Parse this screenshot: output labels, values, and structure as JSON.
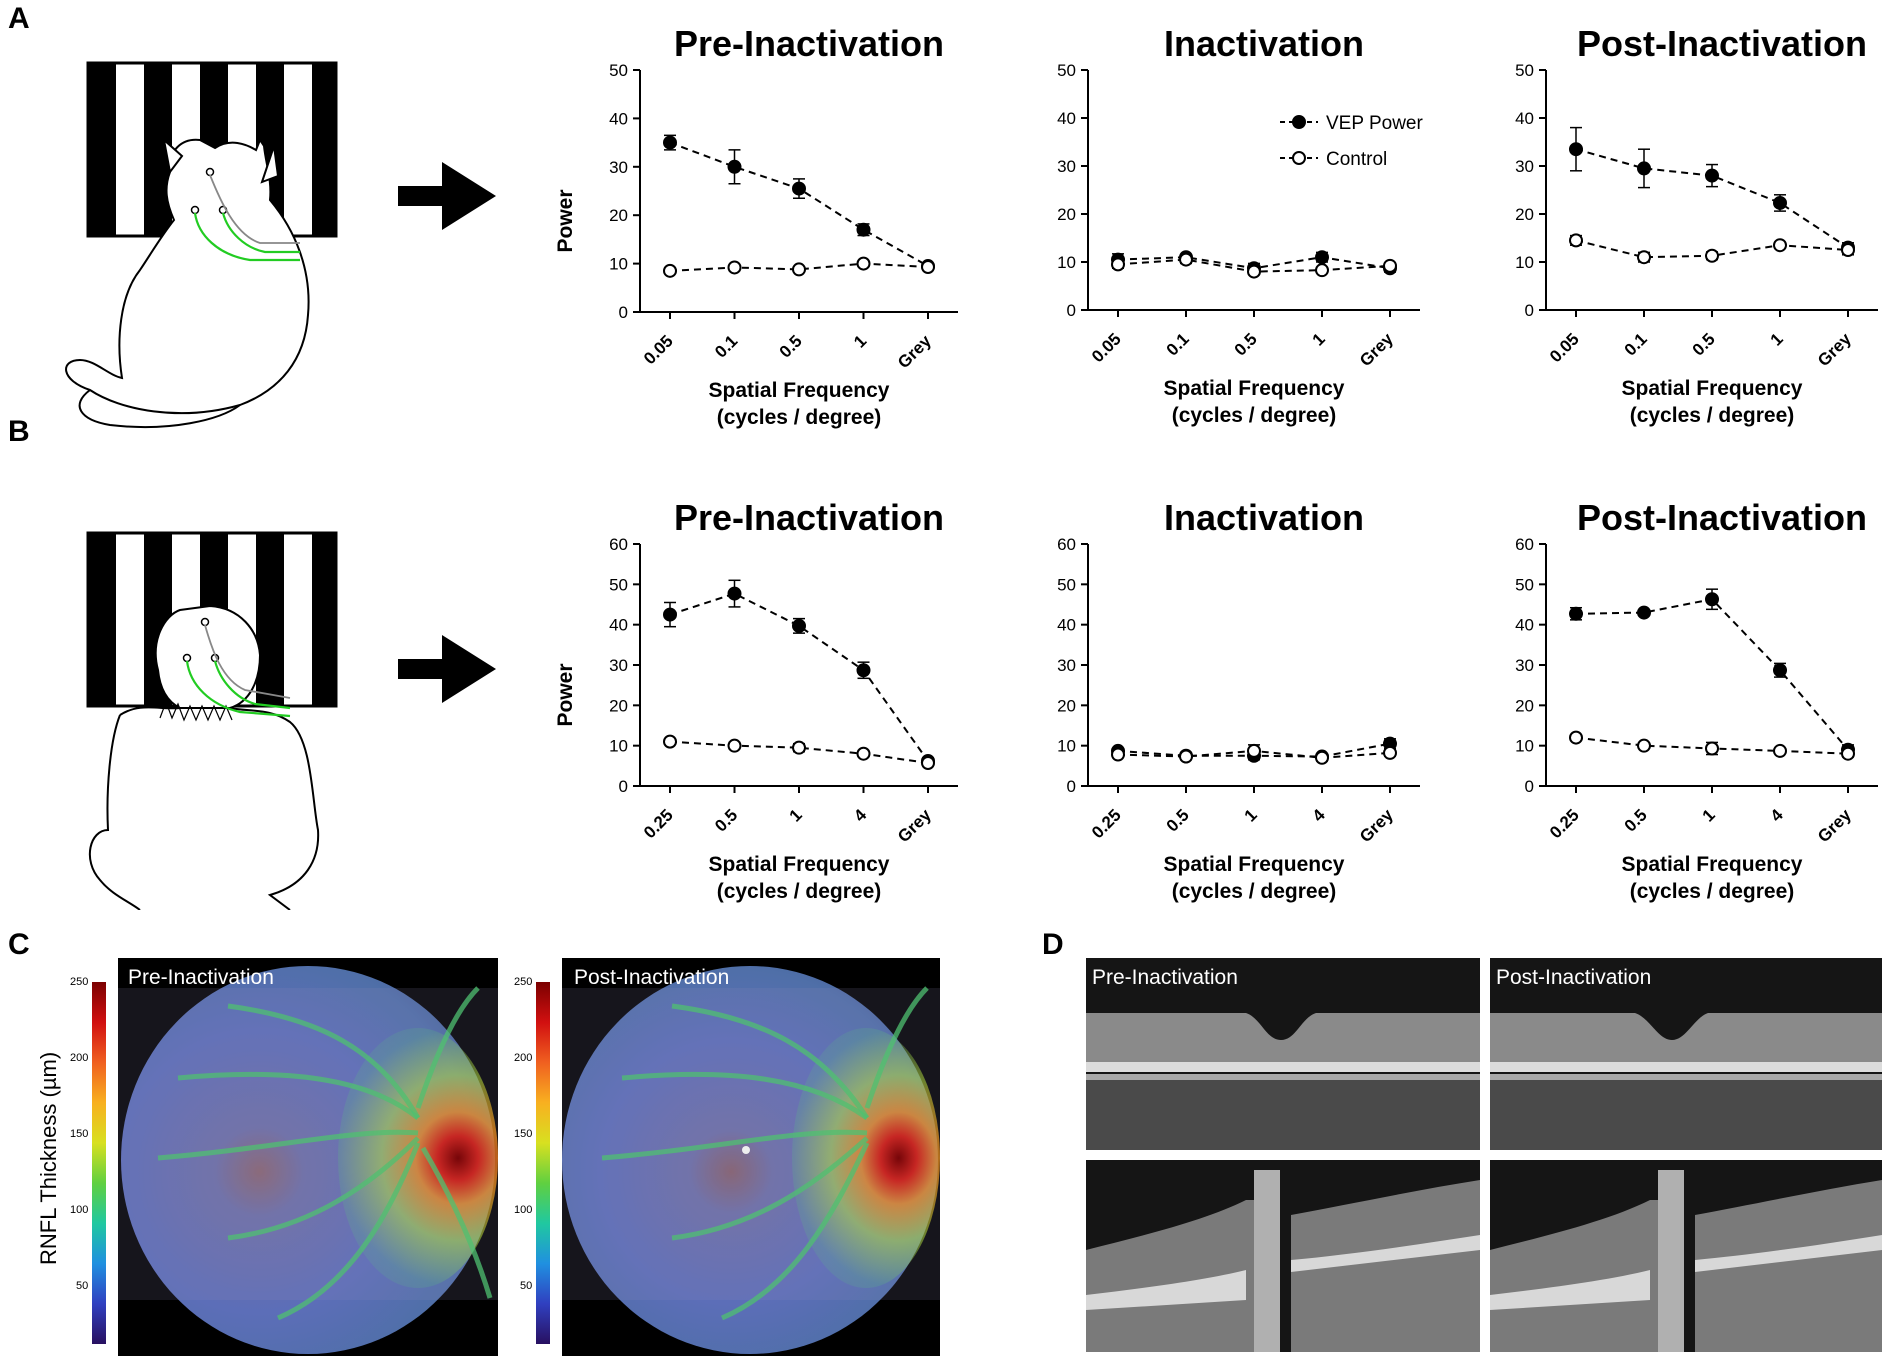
{
  "panel_labels": {
    "a": "A",
    "b": "B",
    "c": "C",
    "d": "D"
  },
  "colors": {
    "series_line": "#000000",
    "filled_marker": "#000000",
    "open_marker_fill": "#ffffff",
    "stripe": "#000000",
    "nerve_green": "#22cc22"
  },
  "legend": {
    "vep": "VEP Power",
    "control": "Control"
  },
  "chart_data": [
    {
      "type": "line",
      "panel": "A",
      "title": "Pre-Inactivation",
      "xlabel": "Spatial Frequency",
      "xlabel2": "(cycles / degree)",
      "ylabel": "Power",
      "ylim": [
        0,
        50
      ],
      "yticks": [
        0,
        10,
        20,
        30,
        40,
        50
      ],
      "categories": [
        "0.05",
        "0.1",
        "0.5",
        "1",
        "Grey"
      ],
      "series": [
        {
          "name": "VEP Power",
          "marker": "filled",
          "values": [
            35,
            30,
            25.5,
            17,
            9.5
          ],
          "errors": [
            1.5,
            3.5,
            2,
            1.2,
            0
          ]
        },
        {
          "name": "Control",
          "marker": "open",
          "values": [
            8.5,
            9.2,
            8.8,
            10,
            9.3
          ],
          "errors": [
            0,
            0,
            0,
            0,
            0
          ]
        }
      ]
    },
    {
      "type": "line",
      "panel": "A",
      "title": "Inactivation",
      "xlabel": "Spatial Frequency",
      "xlabel2": "(cycles / degree)",
      "ylabel": "",
      "ylim": [
        0,
        50
      ],
      "yticks": [
        0,
        10,
        20,
        30,
        40,
        50
      ],
      "categories": [
        "0.05",
        "0.1",
        "0.5",
        "1",
        "Grey"
      ],
      "show_legend": true,
      "series": [
        {
          "name": "VEP Power",
          "marker": "filled",
          "values": [
            10.5,
            11,
            8.7,
            11,
            8.7
          ],
          "errors": [
            1.2,
            0.5,
            1,
            1,
            0.8
          ]
        },
        {
          "name": "Control",
          "marker": "open",
          "values": [
            9.5,
            10.5,
            8,
            8.3,
            9.2
          ],
          "errors": [
            0.8,
            0.8,
            0.6,
            0.5,
            0.5
          ]
        }
      ]
    },
    {
      "type": "line",
      "panel": "A",
      "title": "Post-Inactivation",
      "xlabel": "Spatial Frequency",
      "xlabel2": "(cycles / degree)",
      "ylabel": "",
      "ylim": [
        0,
        50
      ],
      "yticks": [
        0,
        10,
        20,
        30,
        40,
        50
      ],
      "categories": [
        "0.05",
        "0.1",
        "0.5",
        "1",
        "Grey"
      ],
      "series": [
        {
          "name": "VEP Power",
          "marker": "filled",
          "values": [
            33.5,
            29.5,
            28,
            22.3,
            13
          ],
          "errors": [
            4.5,
            4,
            2.3,
            1.7,
            1
          ]
        },
        {
          "name": "Control",
          "marker": "open",
          "values": [
            14.5,
            11,
            11.3,
            13.5,
            12.5
          ],
          "errors": [
            1,
            1,
            0.8,
            0.6,
            1
          ]
        }
      ]
    },
    {
      "type": "line",
      "panel": "B",
      "title": "Pre-Inactivation",
      "xlabel": "Spatial Frequency",
      "xlabel2": "(cycles / degree)",
      "ylabel": "Power",
      "ylim": [
        0,
        60
      ],
      "yticks": [
        0,
        10,
        20,
        30,
        40,
        50,
        60
      ],
      "categories": [
        "0.25",
        "0.5",
        "1",
        "4",
        "Grey"
      ],
      "series": [
        {
          "name": "VEP Power",
          "marker": "filled",
          "values": [
            42.5,
            47.7,
            39.7,
            28.7,
            6.2
          ],
          "errors": [
            3,
            3.3,
            1.8,
            2,
            0.8
          ]
        },
        {
          "name": "Control",
          "marker": "open",
          "values": [
            11,
            10,
            9.5,
            8,
            5.7
          ],
          "errors": [
            0.5,
            0.8,
            1,
            0.5,
            0.5
          ]
        }
      ]
    },
    {
      "type": "line",
      "panel": "B",
      "title": "Inactivation",
      "xlabel": "Spatial Frequency",
      "xlabel2": "(cycles / degree)",
      "ylabel": "",
      "ylim": [
        0,
        60
      ],
      "yticks": [
        0,
        10,
        20,
        30,
        40,
        50,
        60
      ],
      "categories": [
        "0.25",
        "0.5",
        "1",
        "4",
        "Grey"
      ],
      "series": [
        {
          "name": "VEP Power",
          "marker": "filled",
          "values": [
            8.7,
            7.5,
            7.5,
            7.3,
            10.5
          ],
          "errors": [
            0.5,
            0.8,
            1,
            0.5,
            1.2
          ]
        },
        {
          "name": "Control",
          "marker": "open",
          "values": [
            7.8,
            7.3,
            8.7,
            7,
            8.2
          ],
          "errors": [
            0.5,
            0.8,
            1.5,
            0.8,
            0.8
          ]
        }
      ]
    },
    {
      "type": "line",
      "panel": "B",
      "title": "Post-Inactivation",
      "xlabel": "Spatial Frequency",
      "xlabel2": "(cycles / degree)",
      "ylabel": "",
      "ylim": [
        0,
        60
      ],
      "yticks": [
        0,
        10,
        20,
        30,
        40,
        50,
        60
      ],
      "categories": [
        "0.25",
        "0.5",
        "1",
        "4",
        "Grey"
      ],
      "series": [
        {
          "name": "VEP Power",
          "marker": "filled",
          "values": [
            42.7,
            43,
            46.3,
            28.7,
            9
          ],
          "errors": [
            1.5,
            0.6,
            2.5,
            1.7,
            1.2
          ]
        },
        {
          "name": "Control",
          "marker": "open",
          "values": [
            12,
            10,
            9.3,
            8.7,
            8
          ],
          "errors": [
            0.5,
            0.5,
            1.5,
            0.5,
            0.8
          ]
        }
      ]
    }
  ],
  "fundus": {
    "colorbar_title": "RNFL Thickness (µm)",
    "colorbar_ticks": [
      "250",
      "200",
      "150",
      "100",
      "50"
    ],
    "pre_label": "Pre-Inactivation",
    "post_label": "Post-Inactivation"
  },
  "oct": {
    "pre_label": "Pre-Inactivation",
    "post_label": "Post-Inactivation"
  }
}
